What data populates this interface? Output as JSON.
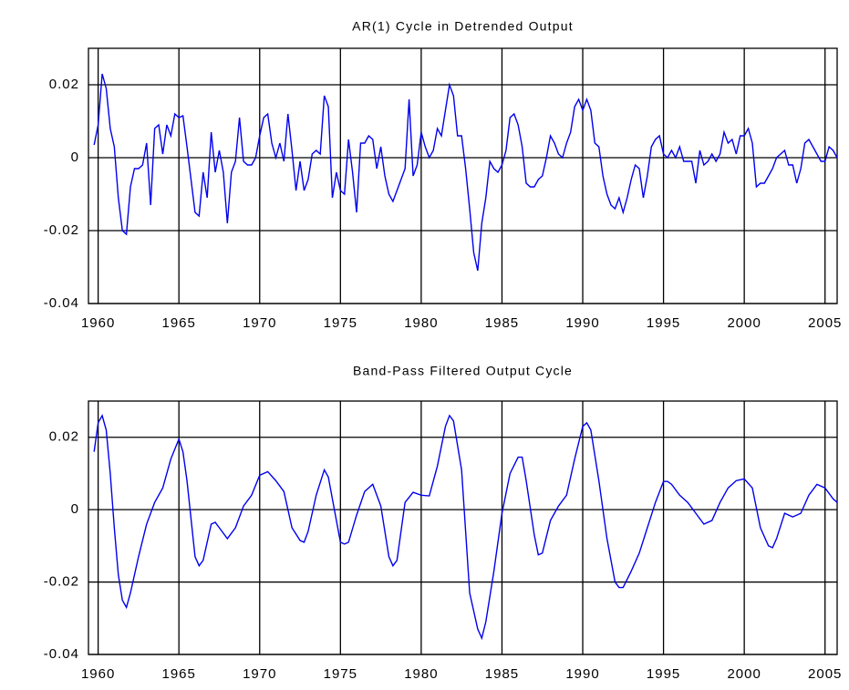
{
  "chart_data": [
    {
      "type": "line",
      "title": "AR(1) Cycle in Detrended Output",
      "color": "#0000ee",
      "grid": true,
      "xlim": [
        1959.4,
        2005.75
      ],
      "ylim": [
        -0.04,
        0.03
      ],
      "xticks": [
        1960,
        1965,
        1970,
        1975,
        1980,
        1985,
        1990,
        1995,
        2000,
        2005
      ],
      "yticks": [
        0.02,
        0,
        -0.02,
        -0.04
      ],
      "x": [
        1959.75,
        1960,
        1960.25,
        1960.5,
        1960.75,
        1961,
        1961.25,
        1961.5,
        1961.75,
        1962,
        1962.25,
        1962.5,
        1962.75,
        1963,
        1963.25,
        1963.5,
        1963.75,
        1964,
        1964.25,
        1964.5,
        1964.75,
        1965,
        1965.25,
        1965.5,
        1965.75,
        1966,
        1966.25,
        1966.5,
        1966.75,
        1967,
        1967.25,
        1967.5,
        1967.75,
        1968,
        1968.25,
        1968.5,
        1968.75,
        1969,
        1969.25,
        1969.5,
        1969.75,
        1970,
        1970.25,
        1970.5,
        1970.75,
        1971,
        1971.25,
        1971.5,
        1971.75,
        1972,
        1972.25,
        1972.5,
        1972.75,
        1973,
        1973.25,
        1973.5,
        1973.75,
        1974,
        1974.25,
        1974.5,
        1974.75,
        1975,
        1975.25,
        1975.5,
        1975.75,
        1976,
        1976.25,
        1976.5,
        1976.75,
        1977,
        1977.25,
        1977.5,
        1977.75,
        1978,
        1978.25,
        1978.5,
        1978.75,
        1979,
        1979.25,
        1979.5,
        1979.75,
        1980,
        1980.25,
        1980.5,
        1980.75,
        1981,
        1981.25,
        1981.5,
        1981.75,
        1982,
        1982.25,
        1982.5,
        1982.75,
        1983,
        1983.25,
        1983.5,
        1983.75,
        1984,
        1984.25,
        1984.5,
        1984.75,
        1985,
        1985.25,
        1985.5,
        1985.75,
        1986,
        1986.25,
        1986.5,
        1986.75,
        1987,
        1987.25,
        1987.5,
        1987.75,
        1988,
        1988.25,
        1988.5,
        1988.75,
        1989,
        1989.25,
        1989.5,
        1989.75,
        1990,
        1990.25,
        1990.5,
        1990.75,
        1991,
        1991.25,
        1991.5,
        1991.75,
        1992,
        1992.25,
        1992.5,
        1992.75,
        1993,
        1993.25,
        1993.5,
        1993.75,
        1994,
        1994.25,
        1994.5,
        1994.75,
        1995,
        1995.25,
        1995.5,
        1995.75,
        1996,
        1996.25,
        1996.5,
        1996.75,
        1997,
        1997.25,
        1997.5,
        1997.75,
        1998,
        1998.25,
        1998.5,
        1998.75,
        1999,
        1999.25,
        1999.5,
        1999.75,
        2000,
        2000.25,
        2000.5,
        2000.75,
        2001,
        2001.25,
        2001.5,
        2001.75,
        2002,
        2002.25,
        2002.5,
        2002.75,
        2003,
        2003.25,
        2003.5,
        2003.75,
        2004,
        2004.25,
        2004.5,
        2004.75,
        2005,
        2005.25,
        2005.5,
        2005.75
      ],
      "values": [
        0.0035,
        0.009,
        0.023,
        0.019,
        0.008,
        0.003,
        -0.011,
        -0.02,
        -0.021,
        -0.008,
        -0.003,
        -0.003,
        -0.002,
        0.004,
        -0.013,
        0.008,
        0.009,
        0.001,
        0.009,
        0.006,
        0.012,
        0.011,
        0.0115,
        0.003,
        -0.006,
        -0.015,
        -0.016,
        -0.004,
        -0.011,
        0.007,
        -0.004,
        0.002,
        -0.004,
        -0.018,
        -0.004,
        -0.001,
        0.011,
        -0.001,
        -0.002,
        -0.002,
        0,
        0.006,
        0.011,
        0.012,
        0.004,
        0,
        0.004,
        -0.001,
        0.012,
        0.002,
        -0.009,
        -0.001,
        -0.009,
        -0.006,
        0.001,
        0.002,
        0.001,
        0.017,
        0.014,
        -0.011,
        -0.004,
        -0.009,
        -0.01,
        0.005,
        -0.004,
        -0.015,
        0.004,
        0.004,
        0.006,
        0.005,
        -0.003,
        0.003,
        -0.005,
        -0.01,
        -0.012,
        -0.009,
        -0.006,
        -0.003,
        0.016,
        -0.005,
        -0.002,
        0.007,
        0.003,
        0,
        0.002,
        0.008,
        0.006,
        0.013,
        0.02,
        0.017,
        0.006,
        0.006,
        -0.003,
        -0.014,
        -0.026,
        -0.031,
        -0.018,
        -0.011,
        -0.001,
        -0.003,
        -0.004,
        -0.002,
        0.002,
        0.011,
        0.012,
        0.009,
        0.003,
        -0.007,
        -0.008,
        -0.008,
        -0.006,
        -0.005,
        0,
        0.006,
        0.004,
        0.001,
        0,
        0.004,
        0.007,
        0.014,
        0.016,
        0.013,
        0.016,
        0.013,
        0.004,
        0.003,
        -0.005,
        -0.01,
        -0.013,
        -0.014,
        -0.011,
        -0.015,
        -0.011,
        -0.006,
        -0.002,
        -0.003,
        -0.011,
        -0.005,
        0.003,
        0.005,
        0.006,
        0.001,
        0,
        0.002,
        0,
        0.003,
        -0.001,
        -0.001,
        -0.001,
        -0.007,
        0.002,
        -0.002,
        -0.001,
        0.001,
        -0.001,
        0.001,
        0.007,
        0.004,
        0.005,
        0.001,
        0.006,
        0.006,
        0.008,
        0.004,
        -0.008,
        -0.007,
        -0.007,
        -0.005,
        -0.003,
        0,
        0.001,
        0.002,
        -0.002,
        -0.002,
        -0.007,
        -0.003,
        0.004,
        0.005,
        0.003,
        0.001,
        -0.001,
        -0.001,
        0.003,
        0.002,
        0
      ]
    },
    {
      "type": "line",
      "title": "Band-Pass Filtered Output Cycle",
      "color": "#0000ee",
      "grid": true,
      "xlim": [
        1959.4,
        2005.75
      ],
      "ylim": [
        -0.04,
        0.03
      ],
      "xticks": [
        1960,
        1965,
        1970,
        1975,
        1980,
        1985,
        1990,
        1995,
        2000,
        2005
      ],
      "yticks": [
        0.02,
        0,
        -0.02,
        -0.04
      ],
      "x": [
        1959.75,
        1960,
        1960.25,
        1960.5,
        1960.75,
        1961,
        1961.25,
        1961.5,
        1961.75,
        1962,
        1962.5,
        1963,
        1963.5,
        1964,
        1964.5,
        1965,
        1965.25,
        1965.5,
        1966,
        1966.25,
        1966.5,
        1967,
        1967.25,
        1967.5,
        1968,
        1968.5,
        1969,
        1969.5,
        1970,
        1970.5,
        1971,
        1971.5,
        1972,
        1972.5,
        1972.75,
        1973,
        1973.5,
        1974,
        1974.25,
        1974.5,
        1975,
        1975.25,
        1975.5,
        1976,
        1976.5,
        1977,
        1977.5,
        1978,
        1978.25,
        1978.5,
        1979,
        1979.5,
        1980,
        1980.5,
        1981,
        1981.5,
        1981.75,
        1982,
        1982.5,
        1983,
        1983.5,
        1983.75,
        1984,
        1984.5,
        1985,
        1985.5,
        1986,
        1986.25,
        1986.5,
        1987,
        1987.25,
        1987.5,
        1988,
        1988.5,
        1989,
        1989.5,
        1990,
        1990.25,
        1990.5,
        1991,
        1991.5,
        1992,
        1992.25,
        1992.5,
        1993,
        1993.5,
        1994,
        1994.5,
        1995,
        1995.25,
        1995.5,
        1996,
        1996.5,
        1997,
        1997.5,
        1998,
        1998.5,
        1999,
        1999.5,
        2000,
        2000.5,
        2001,
        2001.5,
        2001.75,
        2002,
        2002.5,
        2003,
        2003.5,
        2004,
        2004.5,
        2005,
        2005.5,
        2005.75
      ],
      "values": [
        0.016,
        0.024,
        0.026,
        0.022,
        0.01,
        -0.005,
        -0.018,
        -0.025,
        -0.027,
        -0.023,
        -0.013,
        -0.004,
        0.002,
        0.006,
        0.014,
        0.0195,
        0.016,
        0.008,
        -0.013,
        -0.0155,
        -0.014,
        -0.004,
        -0.0035,
        -0.005,
        -0.008,
        -0.005,
        0.001,
        0.004,
        0.0095,
        0.0105,
        0.008,
        0.005,
        -0.005,
        -0.0085,
        -0.009,
        -0.006,
        0.004,
        0.011,
        0.009,
        0.003,
        -0.009,
        -0.0095,
        -0.009,
        -0.0015,
        0.005,
        0.007,
        0.001,
        -0.013,
        -0.0155,
        -0.014,
        0.002,
        0.0048,
        0.004,
        0.0038,
        0.012,
        0.023,
        0.026,
        0.0245,
        0.011,
        -0.023,
        -0.033,
        -0.0355,
        -0.031,
        -0.017,
        -0.001,
        0.01,
        0.0145,
        0.0145,
        0.008,
        -0.007,
        -0.0125,
        -0.012,
        -0.003,
        0.001,
        0.004,
        0.014,
        0.023,
        0.024,
        0.022,
        0.008,
        -0.008,
        -0.02,
        -0.0215,
        -0.0215,
        -0.017,
        -0.012,
        -0.005,
        0.002,
        0.0078,
        0.0078,
        0.007,
        0.004,
        0.002,
        -0.001,
        -0.004,
        -0.003,
        0.002,
        0.006,
        0.008,
        0.0085,
        0.006,
        -0.005,
        -0.01,
        -0.0105,
        -0.008,
        -0.001,
        -0.002,
        -0.001,
        0.004,
        0.007,
        0.006,
        0.003,
        0.002
      ]
    }
  ]
}
